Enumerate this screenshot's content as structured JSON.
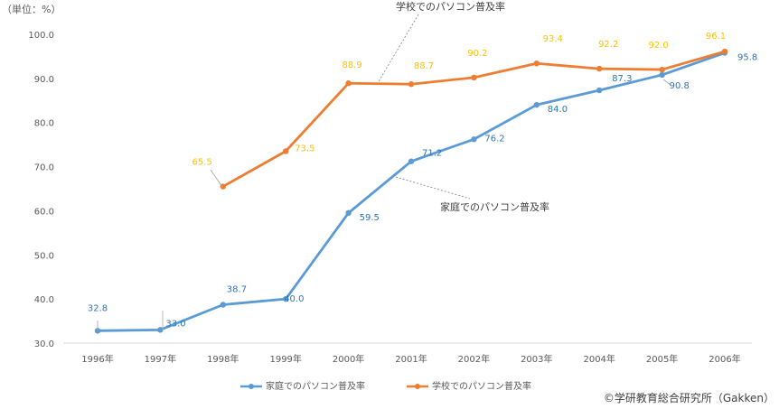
{
  "chart_data": {
    "type": "line",
    "unit_label": "（単位：%）",
    "categories": [
      "1996年",
      "1997年",
      "1998年",
      "1999年",
      "2000年",
      "2001年",
      "2002年",
      "2003年",
      "2004年",
      "2005年",
      "2006年"
    ],
    "yticks": [
      "30.0",
      "40.0",
      "50.0",
      "60.0",
      "70.0",
      "80.0",
      "90.0",
      "100.0"
    ],
    "ylim": [
      30,
      100
    ],
    "grid": false,
    "legend_position": "bottom",
    "series": [
      {
        "name": "家庭でのパソコン普及率",
        "color": "#5b9bd5",
        "label_color": "#2e75b6",
        "values": [
          32.8,
          33.0,
          38.7,
          40.0,
          59.5,
          71.2,
          76.2,
          84.0,
          87.3,
          90.8,
          95.8
        ],
        "labels": [
          "32.8",
          "33.0",
          "38.7",
          "40.0",
          "59.5",
          "71.2",
          "76.2",
          "84.0",
          "87.3",
          "90.8",
          "95.8"
        ]
      },
      {
        "name": "学校でのパソコン普及率",
        "color": "#ed7d31",
        "label_color": "#ffc000",
        "values": [
          null,
          null,
          65.5,
          73.5,
          88.9,
          88.7,
          90.2,
          93.4,
          92.2,
          92.0,
          96.1
        ],
        "labels": [
          "",
          "",
          "65.5",
          "73.5",
          "88.9",
          "88.7",
          "90.2",
          "93.4",
          "92.2",
          "92.0",
          "96.1"
        ]
      }
    ],
    "annotations": {
      "school": "学校でのパソコン普及率",
      "home": "家庭でのパソコン普及率"
    },
    "credit": "©学研教育総合研究所（Gakken）"
  }
}
